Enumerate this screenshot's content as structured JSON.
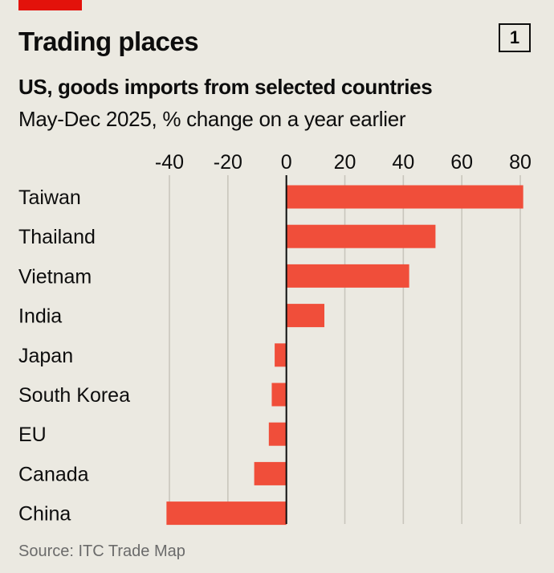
{
  "header": {
    "headline": "Trading places",
    "chart_number": "1"
  },
  "colors": {
    "background": "#ebe9e1",
    "accent": "#e3120b",
    "bar": "#f04e3a",
    "gridline": "#c9c6bc",
    "zero_line": "#0d0d0d",
    "source_text": "#6b6b6b"
  },
  "chart_data": {
    "type": "bar",
    "orientation": "horizontal",
    "title": "US, goods imports from selected countries",
    "subtitle": "May-Dec 2025, % change on a year earlier",
    "categories": [
      "Taiwan",
      "Thailand",
      "Vietnam",
      "India",
      "Japan",
      "South Korea",
      "EU",
      "Canada",
      "China"
    ],
    "values": [
      81,
      51,
      42,
      13,
      -4,
      -5,
      -6,
      -11,
      -41
    ],
    "xlim": [
      -40,
      80
    ],
    "xticks": [
      -40,
      -20,
      0,
      20,
      40,
      60,
      80
    ],
    "xtick_labels": [
      "-40",
      "-20",
      "0",
      "20",
      "40",
      "60",
      "80"
    ],
    "grid": true,
    "axis_position": "top",
    "legend": "none"
  },
  "source": "Source: ITC Trade Map"
}
